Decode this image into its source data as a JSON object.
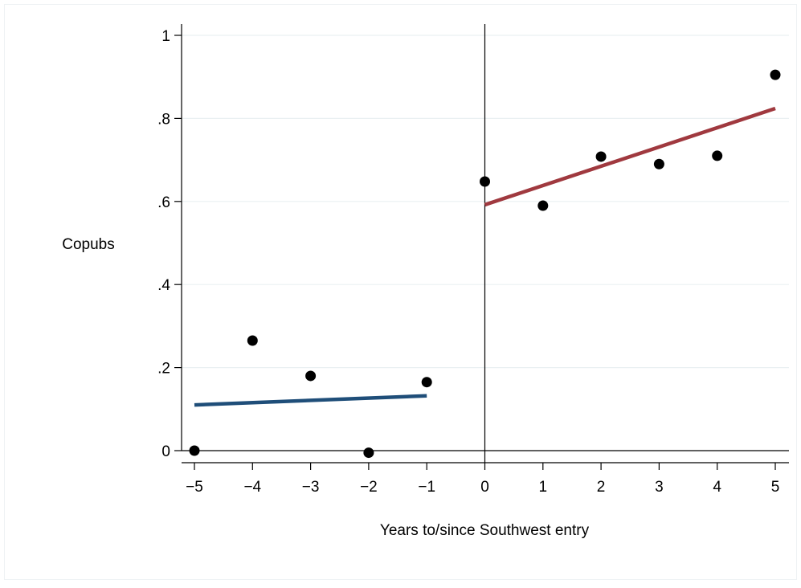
{
  "chart_data": {
    "type": "scatter",
    "title": "",
    "xlabel": "Years to/since Southwest entry",
    "ylabel": "Copubs",
    "xlim": [
      -5,
      5
    ],
    "ylim": [
      0,
      1
    ],
    "x_ticks": [
      -5,
      -4,
      -3,
      -2,
      -1,
      0,
      1,
      2,
      3,
      4,
      5
    ],
    "x_tick_labels": [
      "−5",
      "−4",
      "−3",
      "−2",
      "−1",
      "0",
      "1",
      "2",
      "3",
      "4",
      "5"
    ],
    "y_ticks": [
      0,
      0.2,
      0.4,
      0.6,
      0.8,
      1
    ],
    "y_tick_labels": [
      "0",
      ".2",
      ".4",
      ".6",
      ".8",
      "1"
    ],
    "grid": "horizontal",
    "vertical_reference_line_x": 0,
    "points": [
      {
        "x": -5,
        "y": 0.0
      },
      {
        "x": -4,
        "y": 0.265
      },
      {
        "x": -3,
        "y": 0.18
      },
      {
        "x": -2,
        "y": -0.005
      },
      {
        "x": -1,
        "y": 0.165
      },
      {
        "x": 0,
        "y": 0.648
      },
      {
        "x": 1,
        "y": 0.59
      },
      {
        "x": 2,
        "y": 0.708
      },
      {
        "x": 3,
        "y": 0.69
      },
      {
        "x": 4,
        "y": 0.71
      },
      {
        "x": 5,
        "y": 0.905
      }
    ],
    "fit_lines": [
      {
        "x": [
          -5,
          -1
        ],
        "y": [
          0.11,
          0.132
        ],
        "color": "#1f4e79"
      },
      {
        "x": [
          0,
          5
        ],
        "y": [
          0.592,
          0.824
        ],
        "color": "#a0393f"
      }
    ],
    "point_color": "#000000"
  }
}
